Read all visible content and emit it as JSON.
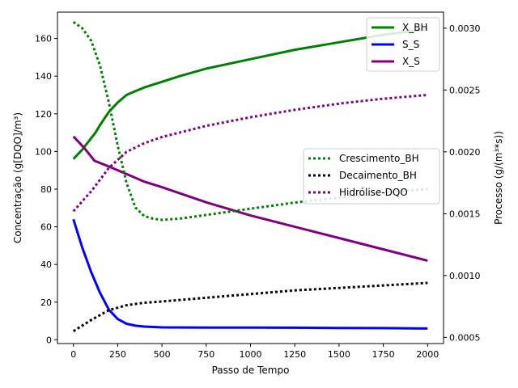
{
  "chart_data": {
    "type": "line",
    "xlabel": "Passo de Tempo",
    "ylabel_left": "Concentração (g[DQO]/m³)",
    "ylabel_right": "Processo (g/(m³*s))",
    "xlim": [
      -90,
      2090
    ],
    "ylim_left": [
      -2,
      174
    ],
    "ylim_right": [
      0.00045,
      0.00313
    ],
    "x_ticks": [
      0,
      250,
      500,
      750,
      1000,
      1250,
      1500,
      1750,
      2000
    ],
    "y_ticks_left": [
      0,
      20,
      40,
      60,
      80,
      100,
      120,
      140,
      160
    ],
    "y_ticks_right": [
      0.0005,
      0.001,
      0.0015,
      0.002,
      0.0025,
      0.003
    ],
    "y_tick_labels_right": [
      "0.0005",
      "0.0010",
      "0.0015",
      "0.0020",
      "0.0025",
      "0.0030"
    ],
    "legend_left_axis": {
      "placement": "upper right",
      "entries": [
        "X_BH",
        "S_S",
        "X_S"
      ]
    },
    "legend_right_axis": {
      "placement": "center right",
      "entries": [
        "Crescimento_BH",
        "Decaimento_BH",
        "Hidrólise-DQO"
      ]
    },
    "series": [
      {
        "name": "X_BH",
        "axis": "left",
        "style": "solid",
        "color": "#008000",
        "x": [
          0,
          50,
          100,
          125,
          150,
          200,
          250,
          300,
          350,
          400,
          500,
          600,
          750,
          1000,
          1250,
          1500,
          1750,
          2000
        ],
        "y": [
          96,
          101,
          107,
          110,
          114,
          121,
          126,
          130,
          132,
          134,
          137,
          140,
          144,
          149,
          154,
          158,
          162,
          165
        ]
      },
      {
        "name": "S_S",
        "axis": "left",
        "style": "solid",
        "color": "#0000ff",
        "x": [
          0,
          50,
          100,
          150,
          200,
          250,
          300,
          350,
          400,
          500,
          750,
          1000,
          1250,
          1500,
          1750,
          2000
        ],
        "y": [
          64,
          49,
          36,
          25,
          16,
          11,
          8.5,
          7.5,
          7,
          6.6,
          6.5,
          6.5,
          6.4,
          6.3,
          6.2,
          6
        ],
        "emphasis": true
      },
      {
        "name": "X_S",
        "axis": "left",
        "style": "solid",
        "color": "#800080",
        "x": [
          0,
          60,
          120,
          200,
          300,
          400,
          500,
          750,
          1000,
          1250,
          1500,
          1750,
          2000
        ],
        "y": [
          108,
          102,
          95,
          92,
          88,
          84,
          81,
          73,
          66,
          60,
          54,
          48,
          42
        ]
      },
      {
        "name": "Crescimento_BH",
        "axis": "right",
        "style": "dotted",
        "color": "#008000",
        "x": [
          0,
          50,
          100,
          150,
          200,
          250,
          300,
          350,
          400,
          450,
          500,
          600,
          750,
          1000,
          1250,
          1500,
          1750,
          2000
        ],
        "y": [
          0.00305,
          0.003,
          0.0029,
          0.0027,
          0.0024,
          0.00205,
          0.00175,
          0.00155,
          0.00148,
          0.00146,
          0.00145,
          0.00146,
          0.00149,
          0.00154,
          0.00159,
          0.00163,
          0.00167,
          0.0017
        ]
      },
      {
        "name": "Decaimento_BH",
        "axis": "right",
        "style": "dotted",
        "color": "#000000",
        "x": [
          0,
          100,
          200,
          300,
          400,
          500,
          750,
          1000,
          1250,
          1500,
          1750,
          2000
        ],
        "y": [
          0.00055,
          0.00064,
          0.00072,
          0.00076,
          0.00078,
          0.00079,
          0.00082,
          0.00085,
          0.00088,
          0.0009,
          0.00092,
          0.00094
        ]
      },
      {
        "name": "Hidrólise-DQO",
        "axis": "right",
        "style": "dotted",
        "color": "#800080",
        "x": [
          0,
          100,
          200,
          300,
          400,
          500,
          750,
          1000,
          1250,
          1500,
          1750,
          2000
        ],
        "y": [
          0.00152,
          0.00168,
          0.00187,
          0.002,
          0.00207,
          0.00212,
          0.00221,
          0.00228,
          0.00234,
          0.00239,
          0.00243,
          0.00246
        ]
      }
    ]
  }
}
